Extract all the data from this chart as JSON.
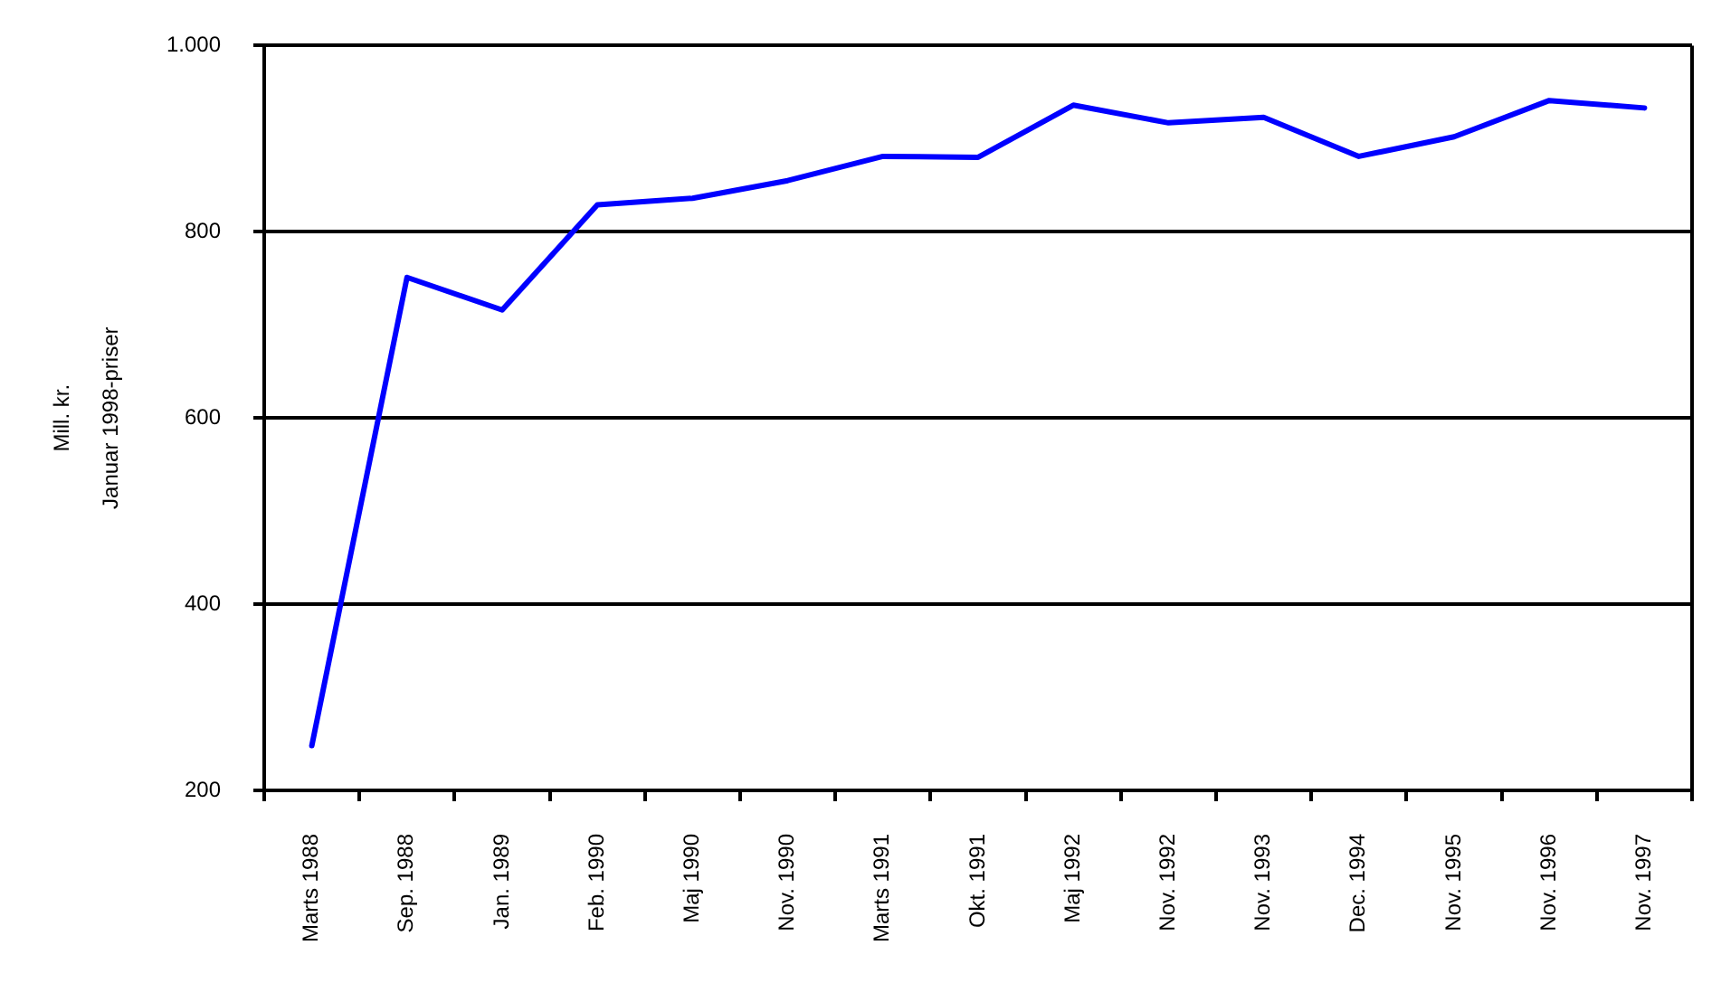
{
  "chart_data": {
    "type": "line",
    "ylabel": "Mill. kr.\nJanuar 1998-priser",
    "categories": [
      "Marts 1988",
      "Sep. 1988",
      "Jan. 1989",
      "Feb. 1990",
      "Maj 1990",
      "Nov. 1990",
      "Marts 1991",
      "Okt. 1991",
      "Maj 1992",
      "Nov. 1992",
      "Nov. 1993",
      "Dec. 1994",
      "Nov. 1995",
      "Nov. 1996",
      "Nov. 1997"
    ],
    "values": [
      248,
      751,
      716,
      829,
      836,
      855,
      881,
      880,
      936,
      917,
      923,
      881,
      902,
      941,
      933
    ],
    "color": "#0000ff",
    "ylim": [
      200,
      1000
    ],
    "yticks": [
      200,
      400,
      600,
      800,
      {
        "value": 1000,
        "label": "1.000"
      }
    ],
    "grid": "y",
    "legend": false,
    "marker": "none"
  }
}
